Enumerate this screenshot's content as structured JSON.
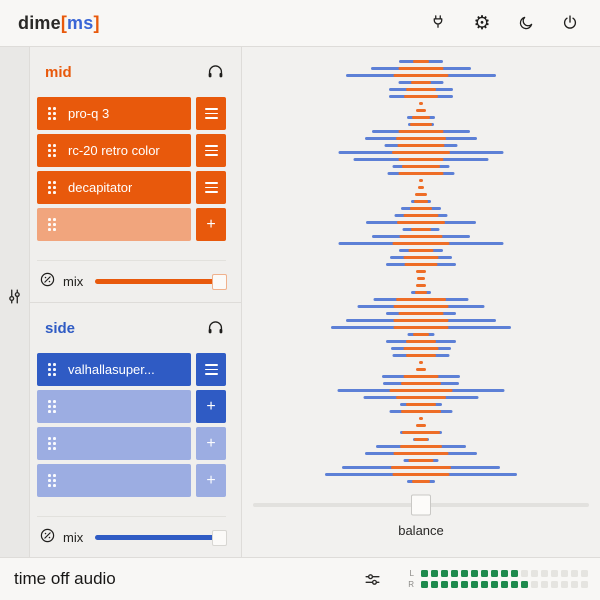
{
  "app": {
    "logo": {
      "prefix": "dime",
      "bracket_open": "[",
      "channels": "ms",
      "bracket_close": "]"
    },
    "topbar_icons": [
      "plug-icon",
      "settings-gear-icon",
      "dark-mode-moon-icon",
      "power-icon"
    ],
    "colors": {
      "mid_accent": "#e8590c",
      "side_accent": "#2f5bc4",
      "viz_blue": "#5d80d6",
      "viz_orange": "#ee6d26",
      "meter_green": "#1e8a4d"
    }
  },
  "mid": {
    "label": "mid",
    "monitor_icon": "headphones-icon",
    "slots": [
      {
        "name": "pro-q 3",
        "filled": true,
        "action": "menu",
        "action_solid": true
      },
      {
        "name": "rc-20 retro color",
        "filled": true,
        "action": "menu",
        "action_solid": true
      },
      {
        "name": "decapitator",
        "filled": true,
        "action": "menu",
        "action_solid": true
      },
      {
        "name": "",
        "filled": false,
        "action": "add",
        "action_solid": true
      }
    ],
    "mix": {
      "label": "mix",
      "value": 1.0
    }
  },
  "side": {
    "label": "side",
    "monitor_icon": "headphones-icon",
    "slots": [
      {
        "name": "valhallasuper...",
        "filled": true,
        "action": "menu",
        "action_solid": true
      },
      {
        "name": "",
        "filled": false,
        "action": "add",
        "action_solid": true
      },
      {
        "name": "",
        "filled": false,
        "action": "add",
        "action_solid": false
      },
      {
        "name": "",
        "filled": false,
        "action": "add",
        "action_solid": false
      }
    ],
    "mix": {
      "label": "mix",
      "value": 1.0
    }
  },
  "viz": {
    "description": "mid/side level visualizer, horizontal centered bars [blue_width, orange_width]",
    "blue": "#5d80d6",
    "orange": "#ee6d26",
    "rows": [
      [
        44,
        16
      ],
      [
        100,
        45
      ],
      [
        150,
        55
      ],
      [
        45,
        20
      ],
      [
        64,
        30
      ],
      [
        64,
        34
      ],
      [
        0,
        4
      ],
      [
        0,
        10
      ],
      [
        28,
        18
      ],
      [
        26,
        22
      ],
      [
        98,
        45
      ],
      [
        112,
        50
      ],
      [
        73,
        47
      ],
      [
        165,
        58
      ],
      [
        135,
        45
      ],
      [
        57,
        38
      ],
      [
        67,
        45
      ],
      [
        0,
        4
      ],
      [
        0,
        6
      ],
      [
        0,
        12
      ],
      [
        20,
        14
      ],
      [
        40,
        22
      ],
      [
        53,
        35
      ],
      [
        110,
        48
      ],
      [
        37,
        20
      ],
      [
        98,
        43
      ],
      [
        165,
        57
      ],
      [
        44,
        25
      ],
      [
        62,
        35
      ],
      [
        70,
        33
      ],
      [
        0,
        10
      ],
      [
        0,
        8
      ],
      [
        0,
        10
      ],
      [
        20,
        12
      ],
      [
        95,
        50
      ],
      [
        127,
        55
      ],
      [
        70,
        45
      ],
      [
        150,
        55
      ],
      [
        180,
        55
      ],
      [
        27,
        16
      ],
      [
        70,
        30
      ],
      [
        60,
        35
      ],
      [
        57,
        30
      ],
      [
        0,
        4
      ],
      [
        0,
        10
      ],
      [
        78,
        35
      ],
      [
        76,
        40
      ],
      [
        167,
        63
      ],
      [
        115,
        50
      ],
      [
        42,
        30
      ],
      [
        63,
        40
      ],
      [
        0,
        4
      ],
      [
        0,
        10
      ],
      [
        42,
        38
      ],
      [
        16,
        14
      ],
      [
        90,
        42
      ],
      [
        112,
        55
      ],
      [
        35,
        25
      ],
      [
        158,
        60
      ],
      [
        192,
        57
      ],
      [
        28,
        18
      ]
    ]
  },
  "balance": {
    "label": "balance",
    "value": 0.5
  },
  "footer": {
    "title": "time off audio",
    "tune_icon": "tune-sliders-icon",
    "meter": {
      "left_label": "L",
      "right_label": "R",
      "segments": 17,
      "left_on": 10,
      "right_on": 11,
      "on_color": "#1e8a4d",
      "off_color": "#e5e4e0"
    }
  }
}
